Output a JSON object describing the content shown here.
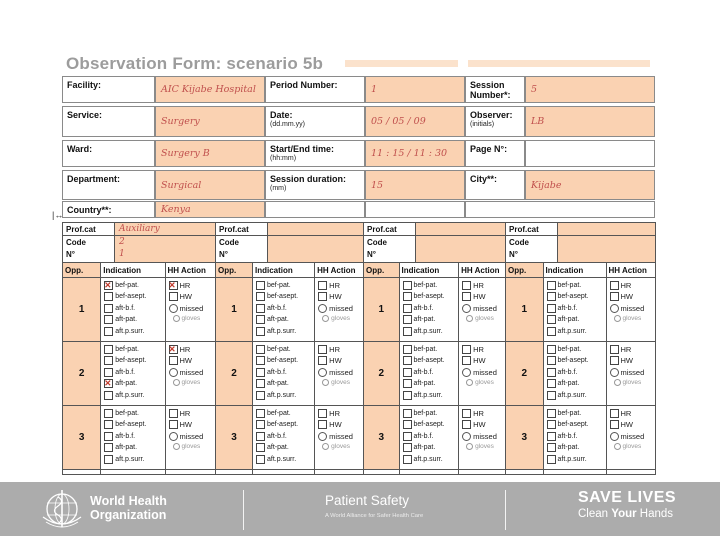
{
  "title": "Observation Form: scenario 5b",
  "artifact": "|↔",
  "colors": {
    "cell_fill": "#FAD2B2",
    "handwriting_red": "#C0504D",
    "check_red": "#C0392B",
    "footer_bar": "#ACACAC",
    "title_gray": "#9C9C9C"
  },
  "form": {
    "facility": {
      "label": "Facility:",
      "value": "AIC Kijabe Hospital"
    },
    "service": {
      "label": "Service:",
      "value": "Surgery"
    },
    "ward": {
      "label": "Ward:",
      "value": "Surgery B"
    },
    "department": {
      "label": "Department:",
      "value": "Surgical"
    },
    "country": {
      "label": "Country**:",
      "value": "Kenya"
    },
    "period": {
      "label": "Period Number:",
      "value": "1"
    },
    "date": {
      "label": "Date:",
      "sub": "(dd.mm.yy)",
      "value": "05 / 05 / 09"
    },
    "time": {
      "label": "Start/End time:",
      "sub": "(hh:mm)",
      "value": "11 : 15 / 11 : 30"
    },
    "duration": {
      "label": "Session duration:",
      "sub": "(mm)",
      "value": "15"
    },
    "session": {
      "label": "Session Number*:",
      "value": "5"
    },
    "observer": {
      "label": "Observer:",
      "sub": "(initials)",
      "value": "LB"
    },
    "page": {
      "label": "Page N°:",
      "value": ""
    },
    "city": {
      "label": "City**:",
      "value": "Kijabe"
    }
  },
  "profcat": {
    "label_profcat": "Prof.cat",
    "label_code": "Code",
    "label_n": "N°",
    "groups": [
      {
        "profcat": "Auxiliary",
        "code": "2",
        "n": "1"
      },
      {
        "profcat": "",
        "code": "",
        "n": ""
      },
      {
        "profcat": "",
        "code": "",
        "n": ""
      },
      {
        "profcat": "",
        "code": "",
        "n": ""
      }
    ]
  },
  "obs_table": {
    "headers": {
      "opp": "Opp.",
      "indication": "Indication",
      "hh_action": "HH Action"
    },
    "indication_labels": [
      "bef-pat.",
      "bef-asept.",
      "aft-b.f.",
      "aft-pat.",
      "aft.p.surr."
    ],
    "action_labels": [
      "HR",
      "HW",
      "missed",
      "gloves"
    ],
    "groups": [
      {
        "rows": [
          {
            "opp": "1",
            "ind": [
              true,
              false,
              false,
              false,
              false
            ],
            "act": [
              true,
              false,
              false,
              false
            ]
          },
          {
            "opp": "2",
            "ind": [
              false,
              false,
              false,
              true,
              false
            ],
            "act": [
              true,
              false,
              false,
              false
            ]
          },
          {
            "opp": "3",
            "ind": [
              false,
              false,
              false,
              false,
              false
            ],
            "act": [
              false,
              false,
              false,
              false
            ]
          }
        ]
      },
      {
        "rows": [
          {
            "opp": "1",
            "ind": [
              false,
              false,
              false,
              false,
              false
            ],
            "act": [
              false,
              false,
              false,
              false
            ]
          },
          {
            "opp": "2",
            "ind": [
              false,
              false,
              false,
              false,
              false
            ],
            "act": [
              false,
              false,
              false,
              false
            ]
          },
          {
            "opp": "3",
            "ind": [
              false,
              false,
              false,
              false,
              false
            ],
            "act": [
              false,
              false,
              false,
              false
            ]
          }
        ]
      },
      {
        "rows": [
          {
            "opp": "1",
            "ind": [
              false,
              false,
              false,
              false,
              false
            ],
            "act": [
              false,
              false,
              false,
              false
            ]
          },
          {
            "opp": "2",
            "ind": [
              false,
              false,
              false,
              false,
              false
            ],
            "act": [
              false,
              false,
              false,
              false
            ]
          },
          {
            "opp": "3",
            "ind": [
              false,
              false,
              false,
              false,
              false
            ],
            "act": [
              false,
              false,
              false,
              false
            ]
          }
        ]
      },
      {
        "rows": [
          {
            "opp": "1",
            "ind": [
              false,
              false,
              false,
              false,
              false
            ],
            "act": [
              false,
              false,
              false,
              false
            ]
          },
          {
            "opp": "2",
            "ind": [
              false,
              false,
              false,
              false,
              false
            ],
            "act": [
              false,
              false,
              false,
              false
            ]
          },
          {
            "opp": "3",
            "ind": [
              false,
              false,
              false,
              false,
              false
            ],
            "act": [
              false,
              false,
              false,
              false
            ]
          }
        ]
      }
    ]
  },
  "footer": {
    "who_line1": "World Health",
    "who_line2": "Organization",
    "program": "Patient Safety",
    "program_sub": "A World Alliance for Safer Health Care",
    "campaign": "SAVE LIVES",
    "clean_prefix": "Clean ",
    "clean_bold": "Your",
    "clean_suffix": " Hands"
  }
}
